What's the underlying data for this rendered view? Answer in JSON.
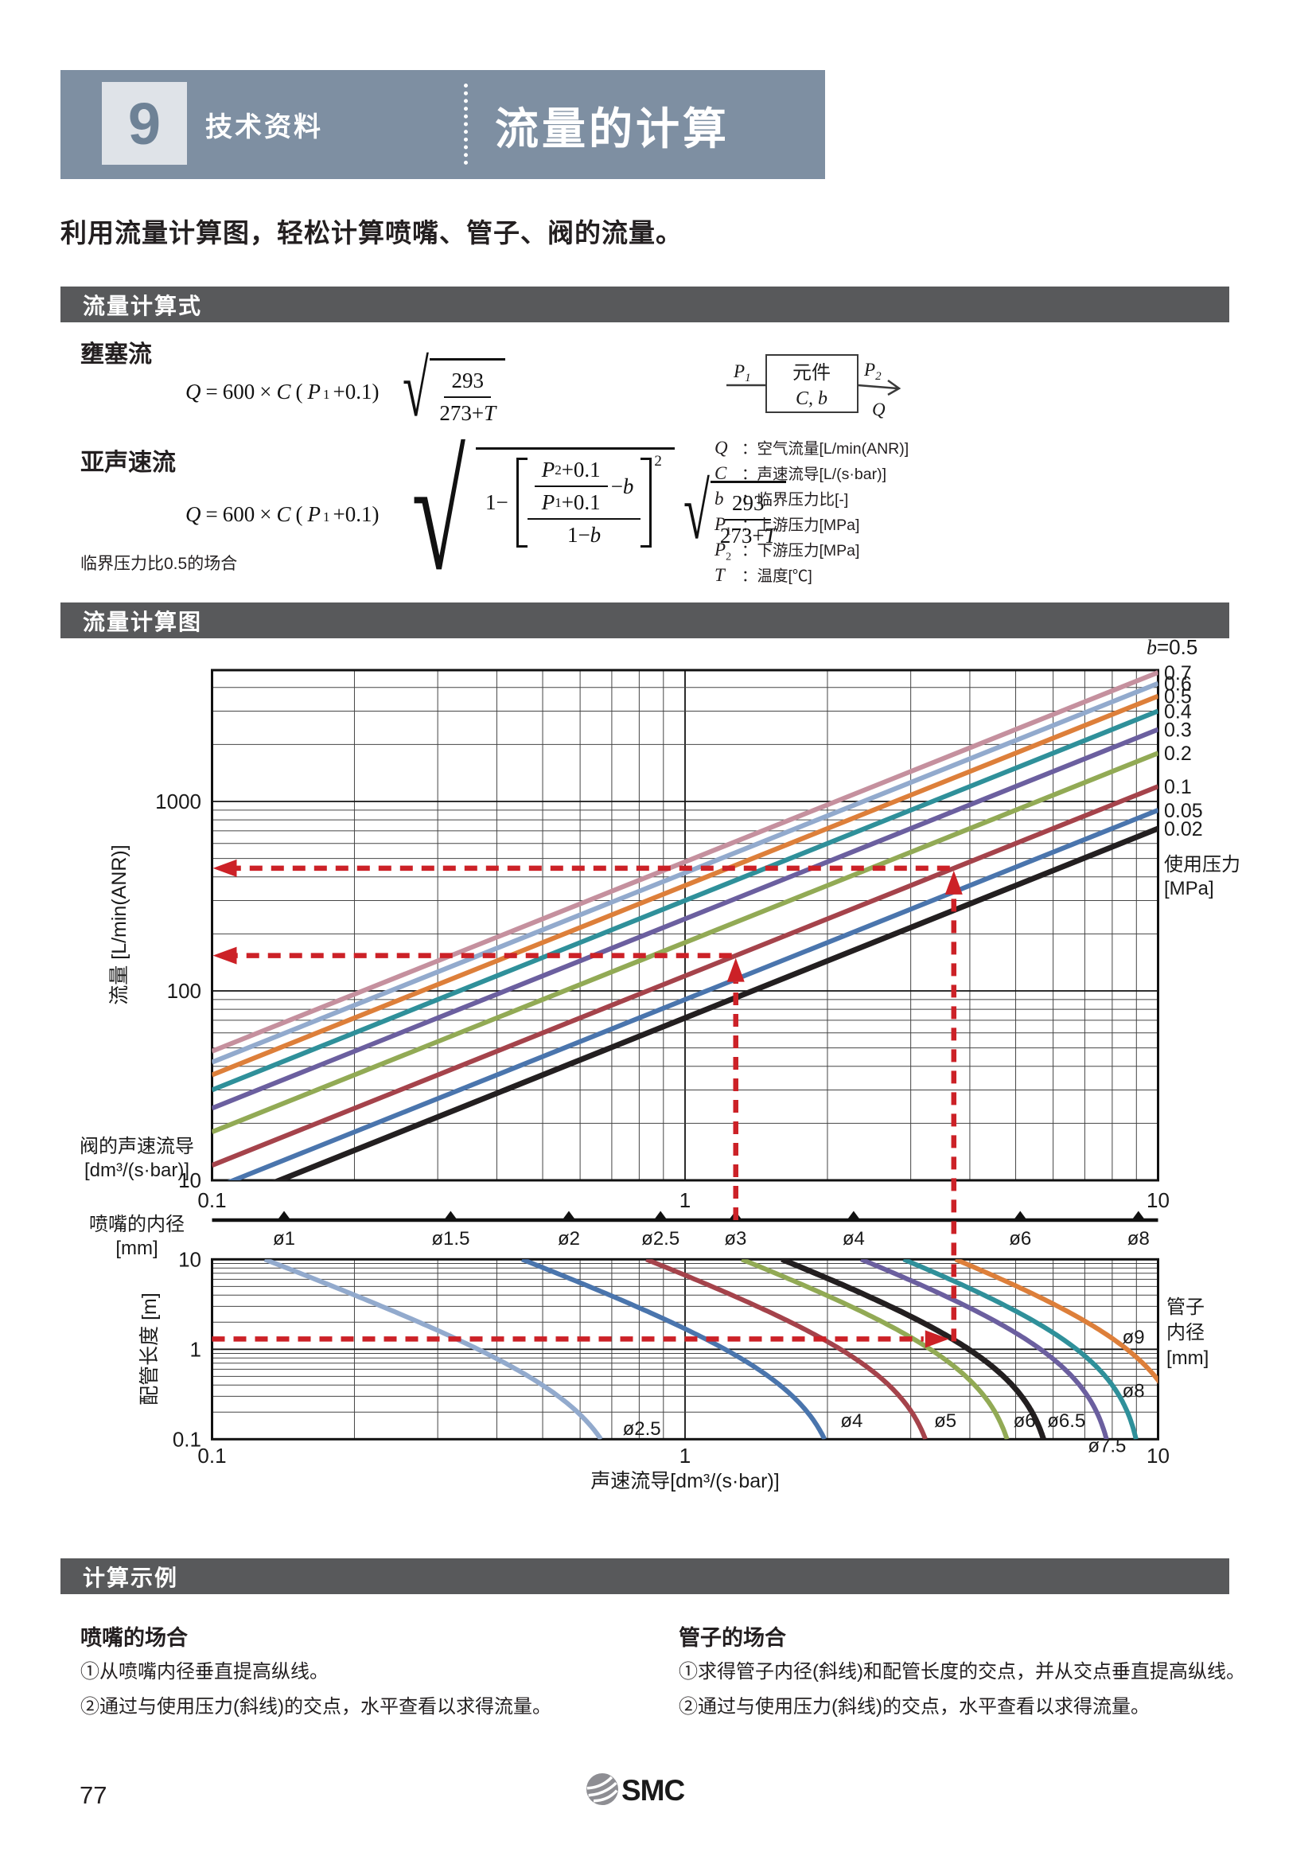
{
  "colors": {
    "header_band": "#7e8fa2",
    "chapter_box": "#dfe3e8",
    "chapter_number": "#6e8296",
    "section_bar": "#58595b",
    "accent_red": "#cc2127",
    "text": "#231f20",
    "logo_gray": "#8e8e93"
  },
  "header": {
    "chapter_number": "9",
    "category": "技术资料",
    "title": "流量的计算"
  },
  "intro": "利用流量计算图，轻松计算喷嘴、管子、阀的流量。",
  "sections": {
    "formula": "流量计算式",
    "chart": "流量计算图",
    "example": "计算示例"
  },
  "formula_block": {
    "choked_label": "壅塞流",
    "subsonic_label": "亚声速流",
    "note": "临界压力比0.5的场合",
    "lhs": {
      "q": "Q",
      "eq": "=",
      "coef": "600",
      "times": "×",
      "c": "C",
      "open": "(",
      "p": "P",
      "psub": "1",
      "close": "+0.1)"
    },
    "rad": {
      "num": "293",
      "den_pre": "273+",
      "den_var": "T"
    },
    "subsonic": {
      "one_minus": "1−",
      "p": "P",
      "sub2": "2",
      "sub1": "1",
      "tail": "+0.1",
      "minus": "−",
      "b": "b",
      "den_pre": "1−",
      "exp": "2"
    }
  },
  "diagram": {
    "p": "P",
    "p1sub": "1",
    "p2sub": "2",
    "q": "Q",
    "box1": "元件",
    "box2": "C, b"
  },
  "variables": [
    {
      "sym": "Q",
      "sub": "",
      "desc": "：空气流量[L/min(ANR)]"
    },
    {
      "sym": "C",
      "sub": "",
      "desc": "：声速流导[L/(s·bar)]"
    },
    {
      "sym": "b",
      "sub": "",
      "desc": "：临界压力比[-]"
    },
    {
      "sym": "P",
      "sub": "1",
      "desc": "：上游压力[MPa]"
    },
    {
      "sym": "P",
      "sub": "2",
      "desc": "：下游压力[MPa]"
    },
    {
      "sym": "T",
      "sub": "",
      "desc": "：温度[℃]"
    }
  ],
  "chart_data": [
    {
      "id": "flow-rate-chart",
      "type": "line",
      "xscale": "log",
      "yscale": "log",
      "xlim": [
        0.1,
        10
      ],
      "ylim": [
        10,
        4940
      ],
      "xlabel_lines": [
        "阀的声速流导",
        "[dm³/(s·bar)]"
      ],
      "ylabel": "流量 [L/min(ANR)]",
      "x_ticks": [
        0.1,
        1,
        10
      ],
      "y_ticks": [
        10,
        100,
        1000
      ],
      "top_label_var": "b",
      "top_label_rest": "=0.5",
      "legend_title_lines": [
        "使用压力",
        "[MPa]"
      ],
      "formula": "Q = 600 × C × (P+0.1) at T=20°C, straight lines in log-log",
      "series": [
        {
          "label": "0.7",
          "pressure_mpa": 0.7,
          "color": "#c5909e",
          "q_at_c1": 480,
          "q_at_c0_1": 48,
          "q_at_c10": 4800
        },
        {
          "label": "0.6",
          "pressure_mpa": 0.6,
          "color": "#92aacd",
          "q_at_c1": 420,
          "q_at_c0_1": 42,
          "q_at_c10": 4200
        },
        {
          "label": "0.5",
          "pressure_mpa": 0.5,
          "color": "#dd7f3a",
          "q_at_c1": 360,
          "q_at_c0_1": 36,
          "q_at_c10": 3600
        },
        {
          "label": "0.4",
          "pressure_mpa": 0.4,
          "color": "#2f909a",
          "q_at_c1": 300,
          "q_at_c0_1": 30,
          "q_at_c10": 3000
        },
        {
          "label": "0.3",
          "pressure_mpa": 0.3,
          "color": "#6b5f9f",
          "q_at_c1": 240,
          "q_at_c0_1": 24,
          "q_at_c10": 2400
        },
        {
          "label": "0.2",
          "pressure_mpa": 0.2,
          "color": "#92aa55",
          "q_at_c1": 180,
          "q_at_c0_1": 18,
          "q_at_c10": 1800
        },
        {
          "label": "0.1",
          "pressure_mpa": 0.1,
          "color": "#a5434b",
          "q_at_c1": 120,
          "q_at_c0_1": 12,
          "q_at_c10": 1200
        },
        {
          "label": "0.05",
          "pressure_mpa": 0.05,
          "color": "#4a75ad",
          "q_at_c1": 90,
          "q_at_c0_1": 9,
          "q_at_c10": 900
        },
        {
          "label": "0.02",
          "pressure_mpa": 0.02,
          "color": "#231f20",
          "q_at_c1": 72,
          "q_at_c0_1": 7.2,
          "q_at_c10": 720
        }
      ]
    },
    {
      "id": "nozzle-bore-axis",
      "type": "axis",
      "label_lines": [
        "喷嘴的内径",
        "[mm]"
      ],
      "c_per_mm2": 0.142,
      "ticks": [
        {
          "label": "ø1",
          "d": 1
        },
        {
          "label": "ø1.5",
          "d": 1.5
        },
        {
          "label": "ø2",
          "d": 2
        },
        {
          "label": "ø2.5",
          "d": 2.5
        },
        {
          "label": "ø3",
          "d": 3
        },
        {
          "label": "ø4",
          "d": 4
        },
        {
          "label": "ø6",
          "d": 6
        },
        {
          "label": "ø8",
          "d": 8
        }
      ]
    },
    {
      "id": "tube-chart",
      "type": "line",
      "xscale": "log",
      "yscale": "log",
      "xlim": [
        0.1,
        10
      ],
      "ylim": [
        0.1,
        10
      ],
      "xlabel": "声速流导[dm³/(s·bar)]",
      "ylabel": "配管长度 [m]",
      "right_label_lines": [
        "管子",
        "内径",
        "[mm]"
      ],
      "x_ticks": [
        0.1,
        1,
        10
      ],
      "y_ticks": [
        0.1,
        1,
        10
      ],
      "model": "C(L) = c_max / sqrt(1 + L/l0)",
      "series": [
        {
          "label": "ø2.5",
          "color": "#92aacd",
          "c_max": 0.77,
          "l0": 0.29,
          "c_at_l10": 0.13,
          "label_at": [
            0.81,
            0.131
          ]
        },
        {
          "label": "ø4",
          "color": "#4a75ad",
          "c_max": 2.18,
          "l0": 0.45,
          "c_at_l10": 0.45,
          "label_at": [
            2.25,
            0.161
          ]
        },
        {
          "label": "ø5",
          "color": "#a5434b",
          "c_max": 3.48,
          "l0": 0.6,
          "c_at_l10": 0.83,
          "label_at": [
            3.55,
            0.161
          ]
        },
        {
          "label": "ø6",
          "color": "#92aa55",
          "c_max": 5.12,
          "l0": 0.71,
          "c_at_l10": 1.32,
          "label_at": [
            5.22,
            0.161
          ]
        },
        {
          "label": "ø6.5",
          "color": "#231f20",
          "c_max": 6.1,
          "l0": 0.74,
          "c_at_l10": 1.6,
          "label_at": [
            6.4,
            0.161
          ]
        },
        {
          "label": "ø7.5",
          "color": "#6b5f9f",
          "c_max": 8.2,
          "l0": 0.9,
          "c_at_l10": 2.36,
          "label_at": [
            7.8,
            0.085
          ]
        },
        {
          "label": "ø8",
          "color": "#2f909a",
          "c_max": 9.4,
          "l0": 1.05,
          "c_at_l10": 2.9,
          "label_at": [
            8.87,
            0.346
          ]
        },
        {
          "label": "ø9",
          "color": "#dd7f3a",
          "c_max": 11.9,
          "l0": 1.09,
          "c_at_l10": 3.73,
          "label_at": [
            8.87,
            1.37
          ]
        }
      ]
    }
  ],
  "example_annotations": {
    "dash_color": "#cc2127",
    "nozzle_example": {
      "c": 1.28,
      "q": 153.6,
      "pressure_line": "0.1"
    },
    "tube_example": {
      "c": 3.7,
      "q": 444,
      "pipe_length_m": 1.3,
      "pressure_line": "0.1"
    }
  },
  "examples": {
    "left": {
      "title": "喷嘴的场合",
      "lines": [
        "①从喷嘴内径垂直提高纵线。",
        "②通过与使用压力(斜线)的交点，水平查看以求得流量。"
      ]
    },
    "right": {
      "title": "管子的场合",
      "lines": [
        "①求得管子内径(斜线)和配管长度的交点，并从交点垂直提高纵线。",
        "②通过与使用压力(斜线)的交点，水平查看以求得流量。"
      ]
    }
  },
  "footer": {
    "page_number": "77",
    "brand": "SMC"
  }
}
